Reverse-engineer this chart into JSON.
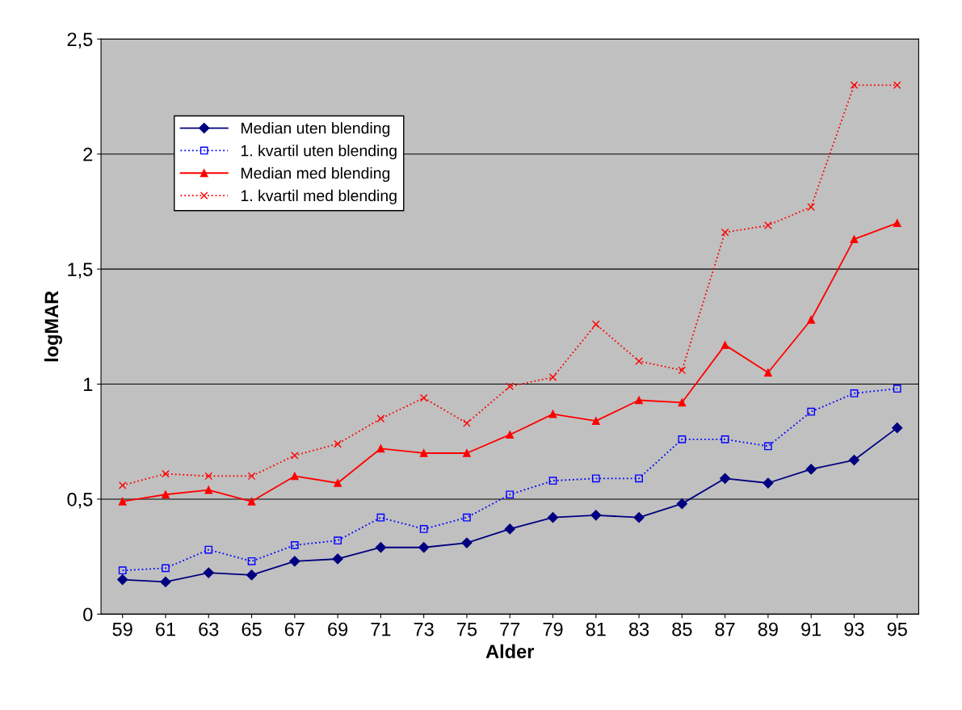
{
  "chart_data": {
    "type": "line",
    "xlabel": "Alder",
    "ylabel": "logMAR",
    "categories": [
      "59",
      "61",
      "63",
      "65",
      "67",
      "69",
      "71",
      "73",
      "75",
      "77",
      "79",
      "81",
      "83",
      "85",
      "87",
      "89",
      "91",
      "93",
      "95"
    ],
    "ylim": [
      0,
      2.5
    ],
    "yticks": [
      0,
      {
        "value": 0.5,
        "label": "0,5"
      },
      1,
      {
        "value": 1.5,
        "label": "1,5"
      },
      2,
      {
        "value": 2.5,
        "label": "2,5"
      }
    ],
    "grid": "y",
    "legend": "top left",
    "series": [
      {
        "name": "Median uten blending",
        "color": "#000080",
        "marker": "diamond",
        "line_style": "solid",
        "values": [
          0.15,
          0.14,
          0.18,
          0.17,
          0.23,
          0.24,
          0.29,
          0.29,
          0.31,
          0.37,
          0.42,
          0.43,
          0.42,
          0.48,
          0.59,
          0.57,
          0.63,
          0.67,
          0.81
        ]
      },
      {
        "name": "1. kvartil uten blending",
        "color": "#0000ff",
        "marker": "square",
        "line_style": "dotted",
        "values": [
          0.19,
          0.2,
          0.28,
          0.23,
          0.3,
          0.32,
          0.42,
          0.37,
          0.42,
          0.52,
          0.58,
          0.59,
          0.59,
          0.76,
          0.76,
          0.73,
          0.88,
          0.96,
          0.98
        ]
      },
      {
        "name": "Median med blending",
        "color": "#ff0000",
        "marker": "triangle",
        "line_style": "solid",
        "values": [
          0.49,
          0.52,
          0.54,
          0.49,
          0.6,
          0.57,
          0.72,
          0.7,
          0.7,
          0.78,
          0.87,
          0.84,
          0.93,
          0.92,
          1.17,
          1.05,
          1.28,
          1.63,
          1.7
        ]
      },
      {
        "name": "1. kvartil med blending",
        "color": "#ff0000",
        "marker": "cross",
        "line_style": "dotted",
        "values": [
          0.56,
          0.61,
          0.6,
          0.6,
          0.69,
          0.74,
          0.85,
          0.94,
          0.83,
          0.99,
          1.03,
          1.26,
          1.1,
          1.06,
          1.66,
          1.69,
          1.77,
          2.3,
          2.3
        ]
      }
    ]
  }
}
